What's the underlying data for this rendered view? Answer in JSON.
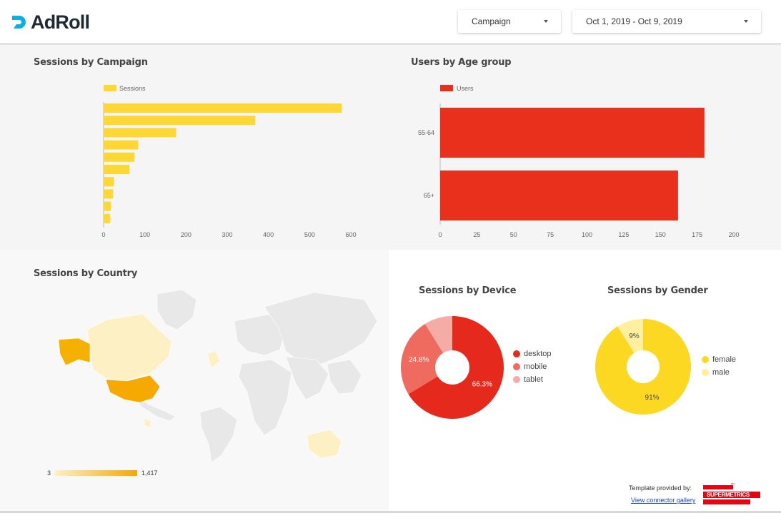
{
  "header": {
    "logo_text": "AdRoll",
    "campaign_dropdown": "Campaign",
    "date_dropdown": "Oct 1, 2019 - Oct 9, 2019"
  },
  "colors": {
    "campaign_bar": "#fdd835",
    "age_bar": "#e8301c",
    "desktop": "#e52a1d",
    "mobile": "#ef6b5f",
    "tablet": "#f5aca6",
    "female": "#fdd823",
    "male": "#fff0a0",
    "map_low": "#fdf0c4",
    "map_high": "#f6a900"
  },
  "sessions_by_campaign": {
    "title": "Sessions by Campaign",
    "chart_data": {
      "type": "bar",
      "orientation": "horizontal",
      "series": [
        {
          "name": "Sessions",
          "values": [
            578,
            368,
            176,
            84,
            75,
            63,
            25,
            23,
            18,
            16
          ]
        }
      ],
      "xlim": [
        0,
        600
      ],
      "xticks": [
        "0",
        "100",
        "200",
        "300",
        "400",
        "500",
        "600"
      ]
    }
  },
  "users_by_age": {
    "title": "Users by Age group",
    "chart_data": {
      "type": "bar",
      "orientation": "horizontal",
      "categories": [
        "55-64",
        "65+"
      ],
      "series": [
        {
          "name": "Users",
          "values": [
            180,
            162
          ]
        }
      ],
      "xlim": [
        0,
        200
      ],
      "xticks": [
        "0",
        "25",
        "50",
        "75",
        "100",
        "125",
        "150",
        "175",
        "200"
      ]
    }
  },
  "sessions_by_country": {
    "title": "Sessions by Country",
    "scale_min": "3",
    "scale_max": "1,417"
  },
  "sessions_by_device": {
    "title": "Sessions by Device",
    "chart_data": {
      "type": "pie",
      "categories": [
        "desktop",
        "mobile",
        "tablet"
      ],
      "values": [
        66.3,
        24.8,
        8.9
      ],
      "labels": [
        "66.3%",
        "24.8%",
        ""
      ]
    }
  },
  "sessions_by_gender": {
    "title": "Sessions by Gender",
    "chart_data": {
      "type": "pie",
      "categories": [
        "female",
        "male"
      ],
      "values": [
        91,
        9
      ],
      "labels": [
        "91%",
        "9%"
      ]
    }
  },
  "footer": {
    "provided_by": "Template provided by:",
    "gallery_link": "View connector gallery",
    "brand": "SUPERMETRICS",
    "brand_tm": "™"
  }
}
